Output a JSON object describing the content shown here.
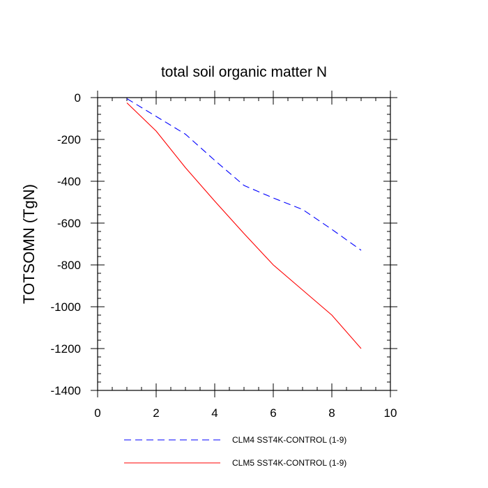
{
  "chart_data": {
    "type": "line",
    "title": "total soil organic matter N",
    "xlabel": "",
    "ylabel": "TOTSOMN  (TgN)",
    "xlim": [
      0,
      10
    ],
    "ylim": [
      -1400,
      0
    ],
    "xticks": [
      0,
      2,
      4,
      6,
      8,
      10
    ],
    "yticks": [
      0,
      -200,
      -400,
      -600,
      -800,
      -1000,
      -1200,
      -1400
    ],
    "x_tick_labels": [
      "0",
      "2",
      "4",
      "6",
      "8",
      "10"
    ],
    "y_tick_labels": [
      "0",
      "-200",
      "-400",
      "-600",
      "-800",
      "-1000",
      "-1200",
      "-1400"
    ],
    "x_minor_step": 0.5,
    "y_minor_step": 40,
    "grid": false,
    "legend_position": "bottom",
    "series": [
      {
        "name": "CLM4 SST4K-CONTROL (1-9)",
        "color": "#0000ff",
        "style": "dashed",
        "x": [
          1,
          2,
          3,
          4,
          5,
          6,
          7,
          8,
          9
        ],
        "values": [
          -5,
          -90,
          -175,
          -300,
          -420,
          -480,
          -535,
          -630,
          -730
        ]
      },
      {
        "name": "CLM5 SST4K-CONTROL (1-9)",
        "color": "#ff0000",
        "style": "solid",
        "x": [
          1,
          2,
          3,
          4,
          5,
          6,
          7,
          8,
          9
        ],
        "values": [
          -25,
          -160,
          -335,
          -495,
          -650,
          -800,
          -920,
          -1040,
          -1200
        ]
      }
    ]
  }
}
